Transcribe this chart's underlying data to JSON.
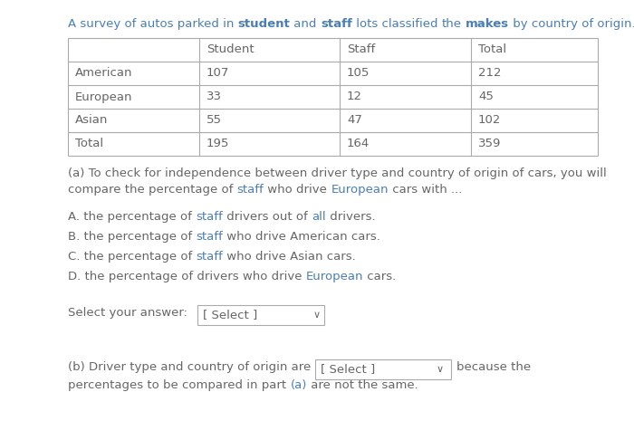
{
  "title_parts": [
    {
      "text": "A survey of autos parked in ",
      "color": "#4a7eb5",
      "bold": false
    },
    {
      "text": "student",
      "color": "#4a7eb5",
      "bold": true
    },
    {
      "text": " and ",
      "color": "#4a7eb5",
      "bold": false
    },
    {
      "text": "staff",
      "color": "#4a7eb5",
      "bold": true
    },
    {
      "text": " lots classified ",
      "color": "#4a7eb5",
      "bold": false
    },
    {
      "text": "the",
      "color": "#4a7eb5",
      "bold": false
    },
    {
      "text": " ",
      "color": "#4a7eb5",
      "bold": false
    },
    {
      "text": "makes",
      "color": "#4a7eb5",
      "bold": true
    },
    {
      "text": " by country of origin.",
      "color": "#4a7eb5",
      "bold": false
    }
  ],
  "table_headers": [
    "",
    "Student",
    "Staff",
    "Total"
  ],
  "table_rows": [
    [
      "American",
      "107",
      "105",
      "212"
    ],
    [
      "European",
      "33",
      "12",
      "45"
    ],
    [
      "Asian",
      "55",
      "47",
      "102"
    ],
    [
      "Total",
      "195",
      "164",
      "359"
    ]
  ],
  "text_color": "#4a7eb5",
  "highlight_color": "#c0392b",
  "blue_color": "#4a7eb5",
  "background_color": "#ffffff",
  "table_border_color": "#aaaaaa"
}
